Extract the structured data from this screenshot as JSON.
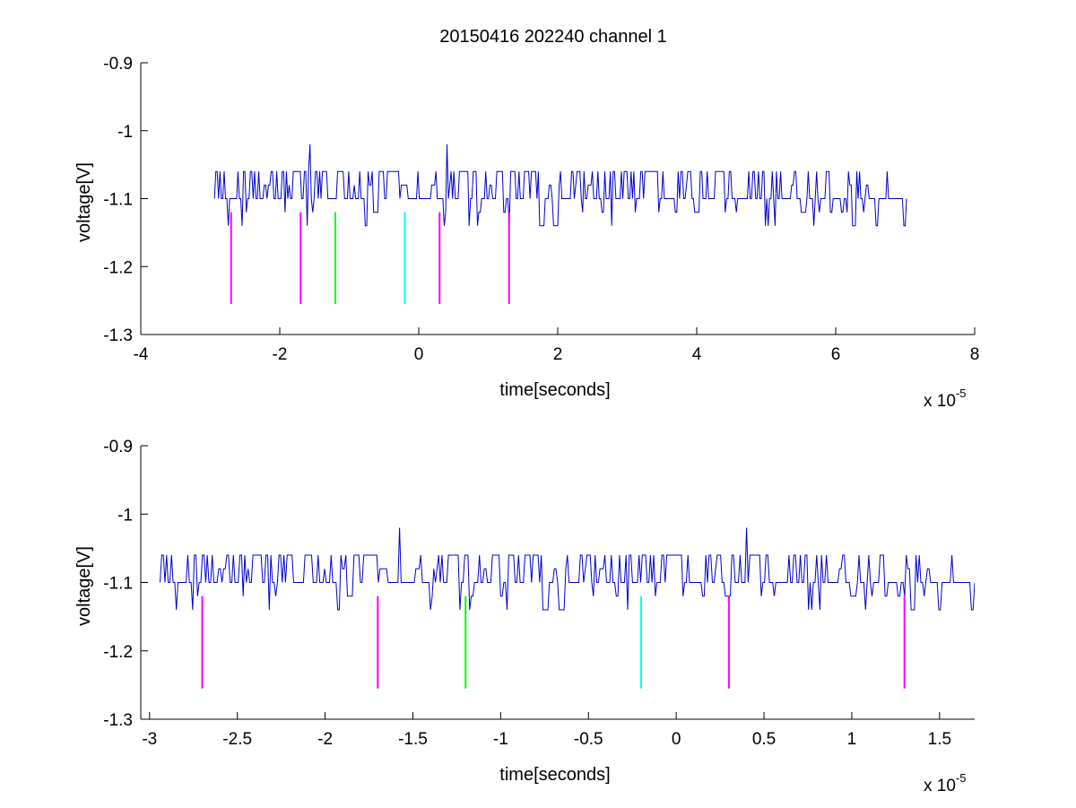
{
  "figure": {
    "title": "20150416 202240 channel 1",
    "signal_color": "#0000cc"
  },
  "chart_data": [
    {
      "type": "line",
      "title": "20150416 202240 channel 1",
      "xlabel": "time[seconds]",
      "ylabel": "voltage[V]",
      "x_exponent_label": "x 10",
      "x_exponent": "-5",
      "xlim": [
        -4,
        8
      ],
      "ylim": [
        -1.3,
        -0.9
      ],
      "x_ticks": [
        -4,
        -2,
        0,
        2,
        4,
        6,
        8
      ],
      "x_tick_labels": [
        "-4",
        "-2",
        "0",
        "2",
        "4",
        "6",
        "8"
      ],
      "y_ticks": [
        -1.3,
        -1.2,
        -1.1,
        -1.0,
        -0.9
      ],
      "y_tick_labels": [
        "-1.3",
        "-1.2",
        "-1.1",
        "-1",
        "-0.9"
      ],
      "grid": false,
      "series": [
        {
          "color": "#0000cc",
          "x_start": -2.94,
          "x_end": 7.02,
          "levels": [
            -1.14,
            -1.12,
            -1.1,
            -1.08,
            -1.06
          ],
          "baseline": -1.1,
          "spikes": [
            {
              "x": -1.56,
              "y": -1.02
            },
            {
              "x": 0.4,
              "y": -1.02
            }
          ]
        }
      ],
      "markers": [
        {
          "x": -2.7,
          "y_top": -1.12,
          "y_bottom": -1.255,
          "color": "#ff00ff"
        },
        {
          "x": -1.7,
          "y_top": -1.12,
          "y_bottom": -1.255,
          "color": "#ff00ff"
        },
        {
          "x": -1.2,
          "y_top": -1.12,
          "y_bottom": -1.255,
          "color": "#00ff00"
        },
        {
          "x": -0.2,
          "y_top": -1.12,
          "y_bottom": -1.255,
          "color": "#00ffff"
        },
        {
          "x": 0.3,
          "y_top": -1.12,
          "y_bottom": -1.255,
          "color": "#ff00ff"
        },
        {
          "x": 1.3,
          "y_top": -1.12,
          "y_bottom": -1.255,
          "color": "#ff00ff"
        }
      ]
    },
    {
      "type": "line",
      "title": "",
      "xlabel": "time[seconds]",
      "ylabel": "voltage[V]",
      "x_exponent_label": "x 10",
      "x_exponent": "-5",
      "xlim": [
        -3.05,
        1.7
      ],
      "ylim": [
        -1.3,
        -0.9
      ],
      "x_ticks": [
        -3,
        -2.5,
        -2,
        -1.5,
        -1,
        -0.5,
        0,
        0.5,
        1,
        1.5
      ],
      "x_tick_labels": [
        "-3",
        "-2.5",
        "-2",
        "-1.5",
        "-1",
        "-0.5",
        "0",
        "0.5",
        "1",
        "1.5"
      ],
      "y_ticks": [
        -1.3,
        -1.2,
        -1.1,
        -1.0,
        -0.9
      ],
      "y_tick_labels": [
        "-1.3",
        "-1.2",
        "-1.1",
        "-1",
        "-0.9"
      ],
      "grid": false,
      "series": [
        {
          "color": "#0000cc",
          "x_start": -2.94,
          "x_end": 1.7,
          "levels": [
            -1.14,
            -1.12,
            -1.1,
            -1.08,
            -1.06
          ],
          "baseline": -1.1,
          "spikes": [
            {
              "x": -1.58,
              "y": -1.02
            },
            {
              "x": 0.4,
              "y": -1.02
            }
          ]
        }
      ],
      "markers": [
        {
          "x": -2.7,
          "y_top": -1.12,
          "y_bottom": -1.255,
          "color": "#ff00ff"
        },
        {
          "x": -1.7,
          "y_top": -1.12,
          "y_bottom": -1.255,
          "color": "#ff00ff"
        },
        {
          "x": -1.2,
          "y_top": -1.12,
          "y_bottom": -1.255,
          "color": "#00ff00"
        },
        {
          "x": -0.2,
          "y_top": -1.12,
          "y_bottom": -1.255,
          "color": "#00ffff"
        },
        {
          "x": 0.3,
          "y_top": -1.12,
          "y_bottom": -1.255,
          "color": "#ff00ff"
        },
        {
          "x": 1.3,
          "y_top": -1.12,
          "y_bottom": -1.255,
          "color": "#ff00ff"
        }
      ]
    }
  ]
}
